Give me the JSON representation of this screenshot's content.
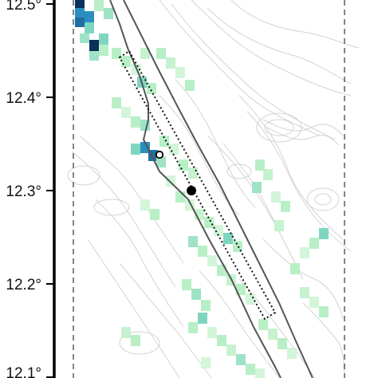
{
  "map": {
    "axis": {
      "y_ticks": [
        {
          "value": 12.5,
          "label": "12.5°"
        },
        {
          "value": 12.4,
          "label": "12.4°"
        },
        {
          "value": 12.3,
          "label": "12.3°"
        },
        {
          "value": 12.2,
          "label": "12.2°"
        },
        {
          "value": 12.1,
          "label": "12.1°"
        }
      ],
      "y_range": [
        12.1,
        12.5
      ]
    },
    "colors": {
      "heat_low": "#b8efc6",
      "heat_mid": "#7fd6c0",
      "heat_high": "#2a8fc0",
      "heat_max": "#0b2f5a",
      "contour": "#c8c8c8",
      "fault": "#555555",
      "frame": "#000000"
    },
    "markers": [
      {
        "name": "filled-circle-marker",
        "lat": 12.3,
        "style": "filled"
      },
      {
        "name": "open-circle-marker",
        "lat": 12.338,
        "style": "open"
      }
    ]
  }
}
